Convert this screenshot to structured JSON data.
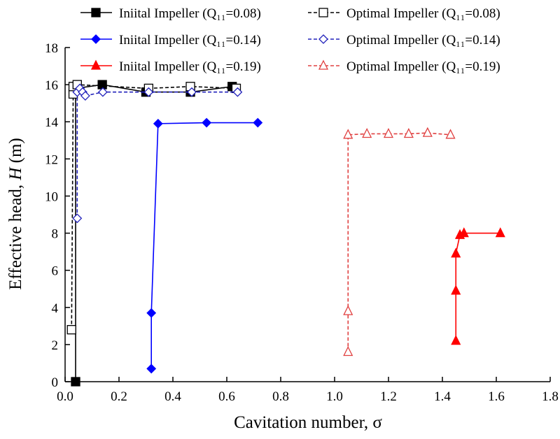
{
  "chart_data": {
    "type": "scatter",
    "xlabel": "Cavitation number, σ",
    "ylabel_prefix": "Effective head, ",
    "ylabel_var": "H",
    "ylabel_suffix": " (m)",
    "xlim": [
      0,
      1.8
    ],
    "ylim": [
      0,
      18
    ],
    "xticks": [
      "0.0",
      "0.2",
      "0.4",
      "0.6",
      "0.8",
      "1.0",
      "1.2",
      "1.4",
      "1.6",
      "1.8"
    ],
    "yticks": [
      "0",
      "2",
      "4",
      "6",
      "8",
      "10",
      "12",
      "14",
      "16",
      "18"
    ],
    "grid": false,
    "legend": "top",
    "series": [
      {
        "name": "Iniital Impeller (Q₁₁=0.08)",
        "color": "#000000",
        "marker": "square",
        "filled": true,
        "dashed": false,
        "x": [
          0.039,
          0.039,
          0.138,
          0.3,
          0.465,
          0.62
        ],
        "y": [
          0,
          15.8,
          16.0,
          15.6,
          15.6,
          15.9
        ]
      },
      {
        "name": "Optimal Impeller (Q₁₁=0.08)",
        "color": "#000000",
        "marker": "square",
        "filled": false,
        "dashed": true,
        "x": [
          0.024,
          0.03,
          0.03,
          0.045,
          0.31,
          0.465,
          0.635
        ],
        "y": [
          2.8,
          15.5,
          15.9,
          16.0,
          15.8,
          15.9,
          15.8
        ]
      },
      {
        "name": "Iniital Impeller (Q₁₁=0.14)",
        "color": "#0000ff",
        "marker": "diamond",
        "filled": true,
        "dashed": false,
        "x": [
          0.32,
          0.32,
          0.345,
          0.525,
          0.715
        ],
        "y": [
          0.7,
          3.7,
          13.9,
          13.95,
          13.95
        ]
      },
      {
        "name": "Optimal Impeller (Q₁₁=0.14)",
        "color": "#2222bb",
        "marker": "diamond",
        "filled": false,
        "dashed": true,
        "x": [
          0.045,
          0.045,
          0.055,
          0.065,
          0.075,
          0.14,
          0.31,
          0.47,
          0.64
        ],
        "y": [
          8.8,
          15.6,
          15.8,
          15.6,
          15.4,
          15.6,
          15.6,
          15.6,
          15.6
        ]
      },
      {
        "name": "Iniital Impeller (Q₁₁=0.19)",
        "color": "#ff0000",
        "marker": "triangle",
        "filled": true,
        "dashed": false,
        "x": [
          1.45,
          1.45,
          1.45,
          1.465,
          1.48,
          1.615
        ],
        "y": [
          2.2,
          4.9,
          6.9,
          7.9,
          8.0,
          8.0
        ]
      },
      {
        "name": "Optimal Impeller (Q₁₁=0.19)",
        "color": "#e04040",
        "marker": "triangle",
        "filled": false,
        "dashed": true,
        "x": [
          1.05,
          1.05,
          1.05,
          1.12,
          1.2,
          1.275,
          1.345,
          1.43
        ],
        "y": [
          1.6,
          3.8,
          13.3,
          13.35,
          13.35,
          13.35,
          13.4,
          13.3
        ]
      }
    ]
  }
}
